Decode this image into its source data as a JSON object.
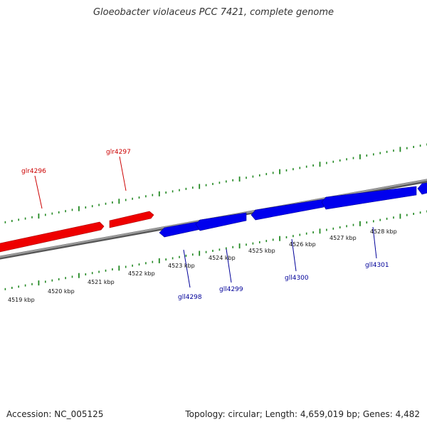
{
  "title": "Gloeobacter violaceus PCC 7421, complete genome",
  "footer": {
    "accession": "Accession: NC_005125",
    "summary": "Topology: circular; Length: 4,659,019 bp; Genes: 4,482"
  },
  "colors": {
    "forward_gene": "#ff0000",
    "reverse_gene": "#0000ff",
    "backbone": "#8a8a8a",
    "tick": "#228822",
    "forward_label": "#cc0000",
    "reverse_label": "#000099"
  },
  "scale_ticks": [
    "4519 kbp",
    "4520 kbp",
    "4521 kbp",
    "4522 kbp",
    "4523 kbp",
    "4524 kbp",
    "4525 kbp",
    "4526 kbp",
    "4527 kbp",
    "4528 kbp"
  ],
  "forward_genes": [
    {
      "name": "glr4296"
    },
    {
      "name": "glr4297"
    }
  ],
  "reverse_genes": [
    {
      "name": "gll4298"
    },
    {
      "name": "gll4299"
    },
    {
      "name": "gll4300"
    },
    {
      "name": "gll4301"
    }
  ]
}
